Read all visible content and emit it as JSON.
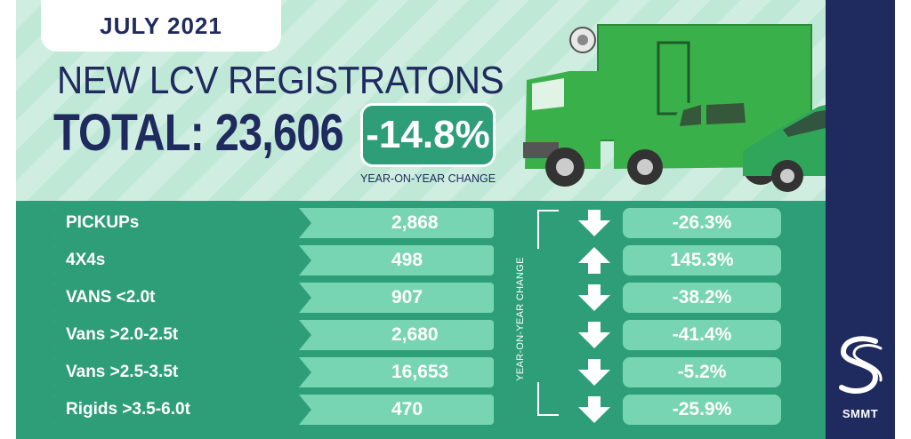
{
  "header": {
    "date_badge": "JULY 2021",
    "title": "NEW LCV REGISTRATONS",
    "total": "TOTAL: 23,606",
    "change": "-14.8%",
    "change_caption": "YEAR-ON-YEAR CHANGE"
  },
  "side_label": "YEAR-ON-YEAR CHANGE",
  "rows": [
    {
      "label": "PICKUPs",
      "value": "2,868",
      "change": "-26.3%",
      "direction": "down"
    },
    {
      "label": "4X4s",
      "value": "498",
      "change": "145.3%",
      "direction": "up"
    },
    {
      "label": "VANS <2.0t",
      "value": "907",
      "change": "-38.2%",
      "direction": "down"
    },
    {
      "label": "Vans >2.0-2.5t",
      "value": "2,680",
      "change": "-41.4%",
      "direction": "down"
    },
    {
      "label": "Vans >2.5-3.5t",
      "value": "16,653",
      "change": "-5.2%",
      "direction": "down"
    },
    {
      "label": "Rigids >3.5-6.0t",
      "value": "470",
      "change": "-25.9%",
      "direction": "down"
    }
  ],
  "logo": {
    "text": "SMMT"
  },
  "colors": {
    "navy": "#1f2a5e",
    "green_dark": "#2e9e79",
    "green_light": "#78d5b3",
    "mint": "#cfeee1"
  },
  "icons": [
    "arrow-down-icon",
    "arrow-up-icon",
    "smmt-logo-icon",
    "truck-icon",
    "pickup-icon",
    "van-icon"
  ]
}
